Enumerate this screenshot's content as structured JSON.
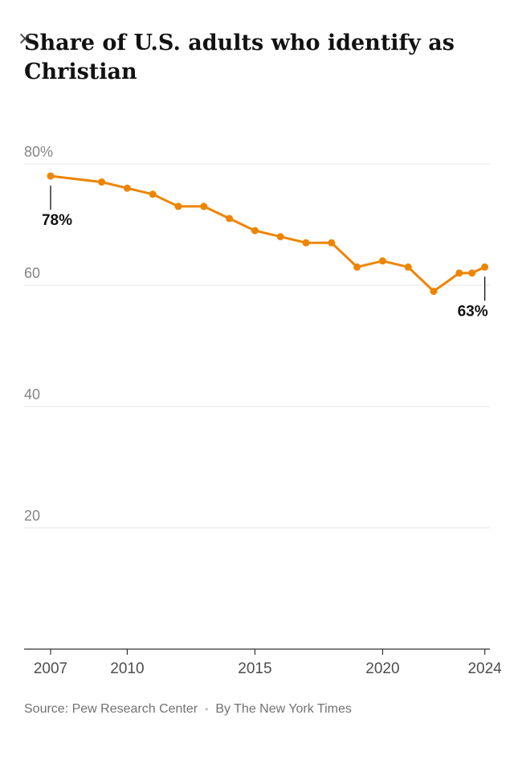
{
  "window": {
    "close_glyph": "×"
  },
  "header": {
    "title_line1": "Share of U.S. adults who identify as",
    "title_line2": "Christian"
  },
  "chart_data": {
    "type": "line",
    "title": "Share of U.S. adults who identify as Christian",
    "x": [
      2007,
      2009,
      2010,
      2011,
      2012,
      2013,
      2014,
      2015,
      2016,
      2017,
      2018,
      2019,
      2020,
      2021,
      2022,
      2023,
      2023.5,
      2024
    ],
    "values": [
      78,
      77,
      76,
      75,
      73,
      73,
      71,
      69,
      68,
      67,
      67,
      63,
      64,
      63,
      59,
      62,
      62,
      63
    ],
    "xlabel": "",
    "ylabel": "",
    "xlim": [
      2007,
      2024.2
    ],
    "ylim": [
      0,
      84
    ],
    "grid": true,
    "legend": "none",
    "x_ticks": [
      {
        "value": 2007,
        "label": "2007"
      },
      {
        "value": 2010,
        "label": "2010"
      },
      {
        "value": 2015,
        "label": "2015"
      },
      {
        "value": 2020,
        "label": "2020"
      },
      {
        "value": 2024,
        "label": "2024"
      }
    ],
    "y_ticks": [
      {
        "value": 80,
        "label": "80%"
      },
      {
        "value": 60,
        "label": "60"
      },
      {
        "value": 40,
        "label": "40"
      },
      {
        "value": 20,
        "label": "20"
      }
    ],
    "annotations": [
      {
        "x": 2007,
        "y": 78,
        "label": "78%",
        "label_dx": 8
      },
      {
        "x": 2024,
        "y": 63,
        "label": "63%",
        "label_dx": -15
      }
    ],
    "line_color": "#ED8500",
    "point_color": "#ED8500",
    "grid_color": "#e4e4e4",
    "axis_color": "#333333",
    "y_tick_color": "#858585",
    "x_tick_color": "#4d4d4d",
    "annotation_color": "#121212"
  },
  "footer": {
    "source": "Source: Pew Research Center",
    "separator": "•",
    "byline": "By The New York Times"
  }
}
